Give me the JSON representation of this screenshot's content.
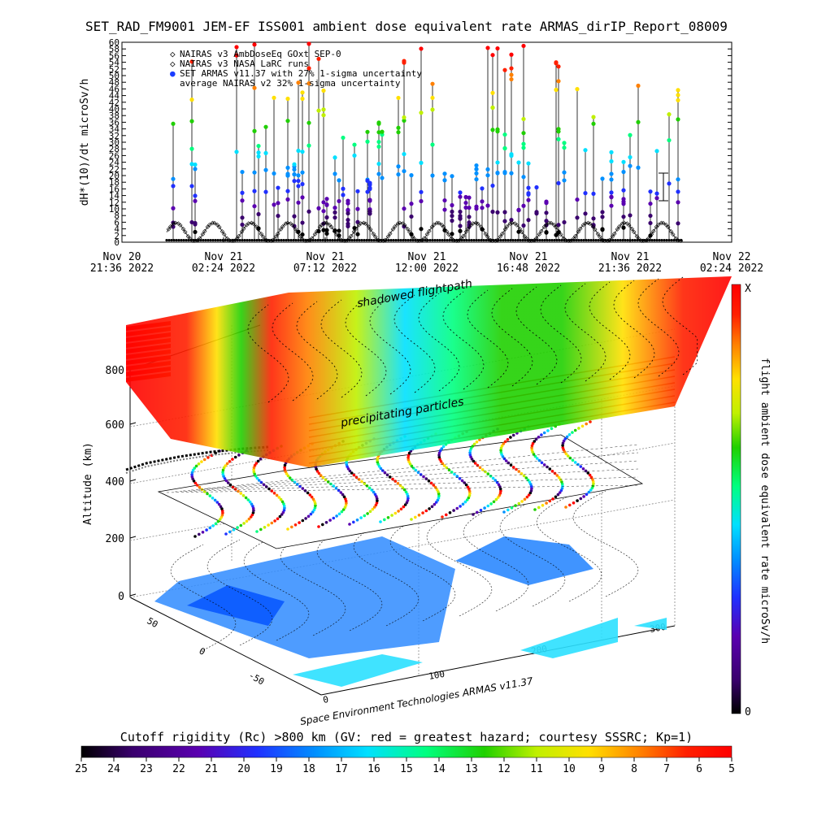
{
  "title": "SET_RAD_FM9001  JEM-EF ISS001 ambient dose equivalent rate ARMAS_dirIP_Report_08009",
  "colors": {
    "rainbow": [
      "#000000",
      "#3a006e",
      "#5a00b0",
      "#2030ff",
      "#0090ff",
      "#00e0ff",
      "#00ff80",
      "#20d000",
      "#c0f000",
      "#ffe000",
      "#ff8000",
      "#ff2000",
      "#ff0000"
    ]
  },
  "chart_data": [
    {
      "type": "scatter",
      "title": "SET_RAD_FM9001  JEM-EF ISS001 ambient dose equivalent rate ARMAS_dirIP_Report_08009",
      "ylabel": "dH*(10)/dt microSv/h",
      "xlabel": "",
      "ylim": [
        0,
        60
      ],
      "y_ticks": [
        "0",
        "2",
        "4",
        "6",
        "8",
        "10",
        "12",
        "14",
        "16",
        "18",
        "20",
        "22",
        "24",
        "26",
        "28",
        "30",
        "32",
        "34",
        "36",
        "38",
        "40",
        "42",
        "44",
        "46",
        "48",
        "50",
        "52",
        "54",
        "56",
        "58",
        "60"
      ],
      "x_ticks": [
        {
          "top": "Nov 20",
          "bottom": "21:36 2022"
        },
        {
          "top": "Nov 21",
          "bottom": "02:24 2022"
        },
        {
          "top": "Nov 21",
          "bottom": "07:12 2022"
        },
        {
          "top": "Nov 21",
          "bottom": "12:00 2022"
        },
        {
          "top": "Nov 21",
          "bottom": "16:48 2022"
        },
        {
          "top": "Nov 21",
          "bottom": "21:36 2022"
        },
        {
          "top": "Nov 22",
          "bottom": "02:24 2022"
        }
      ],
      "legend": [
        {
          "marker": "◇",
          "label": "NAIRAS v3 AmbDoseEq GOxt SEP-0"
        },
        {
          "marker": "◇",
          "label": "NAIRAS v3 NASA LaRC runs"
        },
        {
          "marker": "●",
          "label": "SET ARMAS v11.37 with 27% 1-sigma uncertainty"
        },
        {
          "marker": "",
          "label": "average NAIRAS v2 32% 1-sigma uncertainty"
        }
      ],
      "series": [
        {
          "name": "NAIRAS v3 AmbDoseEq GOxt SEP-0",
          "pattern": "oscillating 0-6 microSv/h with period ~1.5 h"
        },
        {
          "name": "SET ARMAS v11.37 with 27% 1-sigma uncertainty",
          "pattern": "vertical spikes from baseline to 60 microSv/h"
        }
      ]
    },
    {
      "type": "heatmap",
      "zlabel": "Altitude (km)",
      "z_ticks": [
        "0",
        "200",
        "400",
        "600",
        "800"
      ],
      "x_ticks": [
        "0",
        "100",
        "200",
        "300"
      ],
      "y_ticks": [
        "50",
        "0",
        "-50"
      ],
      "annotations": [
        "shadowed flightpath",
        "precipitating particles"
      ],
      "credit": "Space Environment Technologies ARMAS v11.37",
      "colorbar_vertical": {
        "label": "flight ambient dose equivalent rate microSv/h",
        "top": "X",
        "bottom": "0"
      },
      "colorbar_horizontal": {
        "title": "Cutoff rigidity (Rc) >800 km (GV: red = greatest hazard; courtesy SSSRC; Kp=1)",
        "ticks": [
          "25",
          "24",
          "23",
          "22",
          "21",
          "20",
          "19",
          "18",
          "17",
          "16",
          "15",
          "14",
          "13",
          "12",
          "11",
          "10",
          "9",
          "8",
          "7",
          "6",
          "5"
        ]
      }
    }
  ]
}
